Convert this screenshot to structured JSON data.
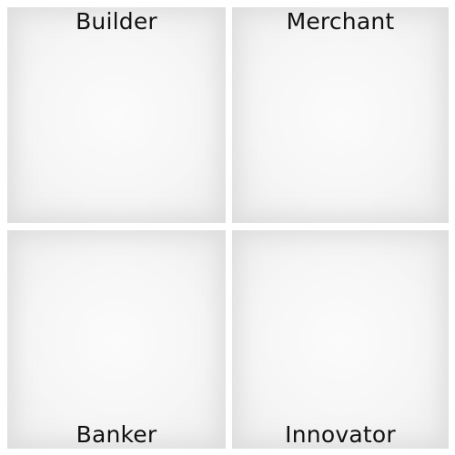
{
  "quadrants": {
    "top_left": {
      "label": "Builder"
    },
    "top_right": {
      "label": "Merchant"
    },
    "bottom_left": {
      "label": "Banker"
    },
    "bottom_right": {
      "label": "Innovator"
    }
  }
}
